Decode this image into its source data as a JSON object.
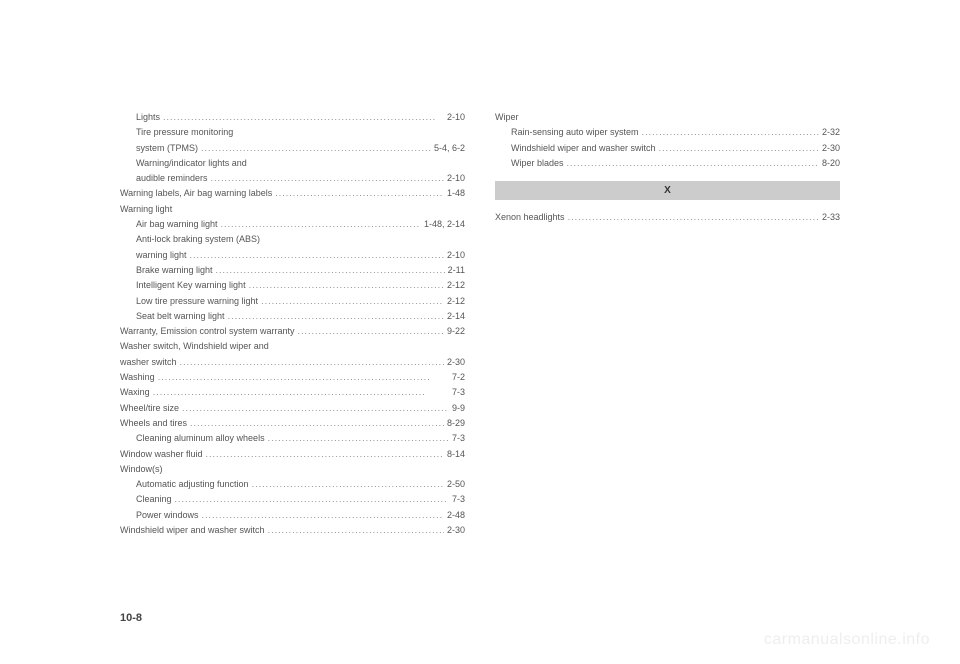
{
  "page_number": "10-8",
  "watermark": "carmanualsonline.info",
  "column1": [
    {
      "text": "Lights",
      "page": "2-10",
      "indent": true
    },
    {
      "text": "Tire pressure monitoring",
      "page": "",
      "indent": true,
      "no_dots": true
    },
    {
      "text": "system (TPMS)",
      "page": "5-4, 6-2",
      "indent": true
    },
    {
      "text": "Warning/indicator lights and",
      "page": "",
      "indent": true,
      "no_dots": true
    },
    {
      "text": "audible reminders",
      "page": "2-10",
      "indent": true
    },
    {
      "text": "Warning labels, Air bag warning labels",
      "page": "1-48",
      "indent": false
    },
    {
      "text": "Warning light",
      "page": "",
      "indent": false,
      "no_dots": true
    },
    {
      "text": "Air bag warning light",
      "page": "1-48, 2-14",
      "indent": true
    },
    {
      "text": "Anti-lock braking system (ABS)",
      "page": "",
      "indent": true,
      "no_dots": true
    },
    {
      "text": "warning light",
      "page": "2-10",
      "indent": true
    },
    {
      "text": "Brake warning light",
      "page": "2-11",
      "indent": true
    },
    {
      "text": "Intelligent Key warning light",
      "page": "2-12",
      "indent": true
    },
    {
      "text": "Low tire pressure warning light",
      "page": "2-12",
      "indent": true
    },
    {
      "text": "Seat belt warning light",
      "page": "2-14",
      "indent": true
    },
    {
      "text": "Warranty, Emission control system warranty",
      "page": "9-22",
      "indent": false
    },
    {
      "text": "Washer switch, Windshield wiper and",
      "page": "",
      "indent": false,
      "no_dots": true
    },
    {
      "text": "washer switch",
      "page": "2-30",
      "indent": false
    },
    {
      "text": "Washing",
      "page": "7-2",
      "indent": false
    },
    {
      "text": "Waxing",
      "page": "7-3",
      "indent": false
    },
    {
      "text": "Wheel/tire size",
      "page": "9-9",
      "indent": false
    },
    {
      "text": "Wheels and tires",
      "page": "8-29",
      "indent": false
    },
    {
      "text": "Cleaning aluminum alloy wheels",
      "page": "7-3",
      "indent": true
    },
    {
      "text": "Window washer fluid",
      "page": "8-14",
      "indent": false
    },
    {
      "text": "Window(s)",
      "page": "",
      "indent": false,
      "no_dots": true
    },
    {
      "text": "Automatic adjusting function",
      "page": "2-50",
      "indent": true
    },
    {
      "text": "Cleaning",
      "page": "7-3",
      "indent": true
    },
    {
      "text": "Power windows",
      "page": "2-48",
      "indent": true
    },
    {
      "text": "Windshield wiper and washer switch",
      "page": "2-30",
      "indent": false
    }
  ],
  "column2_top": [
    {
      "text": "Wiper",
      "page": "",
      "indent": false,
      "no_dots": true
    },
    {
      "text": "Rain-sensing auto wiper system",
      "page": "2-32",
      "indent": true
    },
    {
      "text": "Windshield wiper and washer switch",
      "page": "2-30",
      "indent": true
    },
    {
      "text": "Wiper blades",
      "page": "8-20",
      "indent": true
    }
  ],
  "section_x": "X",
  "column2_bottom": [
    {
      "text": "Xenon headlights",
      "page": "2-33",
      "indent": false
    }
  ]
}
